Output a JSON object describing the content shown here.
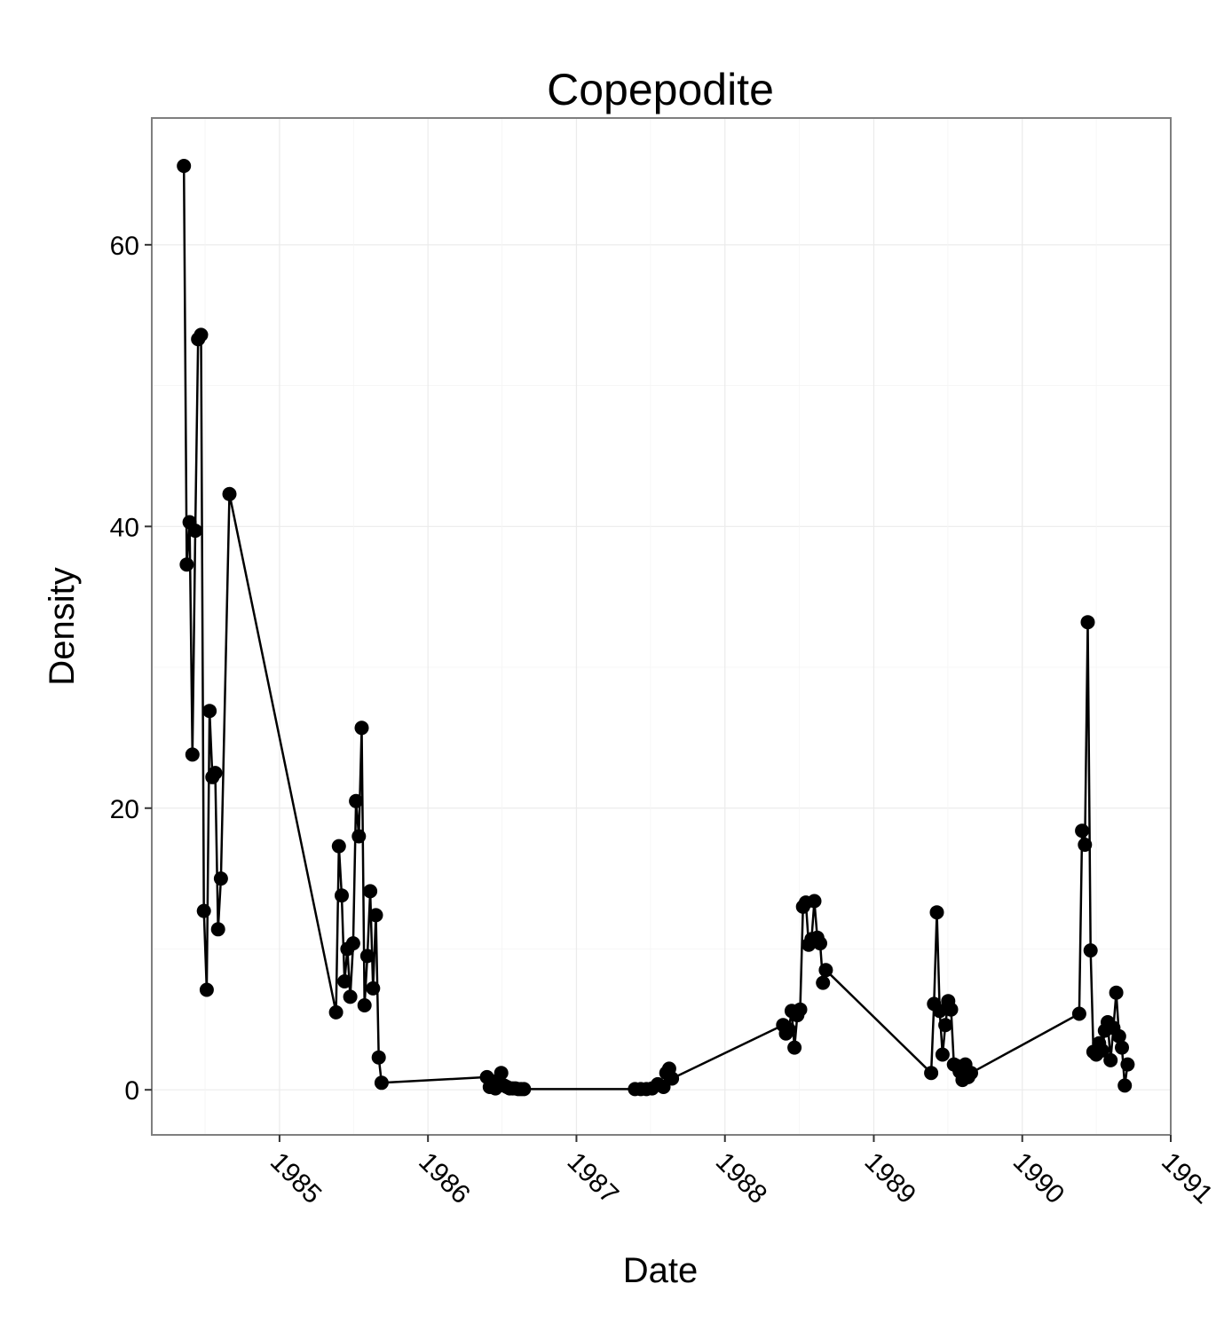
{
  "chart_data": {
    "type": "line",
    "title": "Copepodite",
    "xlabel": "Date",
    "ylabel": "Density",
    "x_ticks": [
      "1985",
      "1986",
      "1987",
      "1988",
      "1989",
      "1990",
      "1991"
    ],
    "y_ticks": [
      "0",
      "20",
      "40",
      "60"
    ],
    "xlim": [
      "1984-02-22",
      "1991-01-01"
    ],
    "ylim": [
      -3.2,
      69.0
    ],
    "grid": true,
    "legend": "none",
    "series": [
      {
        "color": "#000000",
        "points": [
          [
            "1984-05-11",
            65.6
          ],
          [
            "1984-05-18",
            37.3
          ],
          [
            "1984-05-25",
            40.3
          ],
          [
            "1984-06-01",
            23.8
          ],
          [
            "1984-06-08",
            39.7
          ],
          [
            "1984-06-15",
            53.3
          ],
          [
            "1984-06-22",
            53.6
          ],
          [
            "1984-06-29",
            12.7
          ],
          [
            "1984-07-06",
            7.1
          ],
          [
            "1984-07-13",
            26.9
          ],
          [
            "1984-07-20",
            22.2
          ],
          [
            "1984-07-27",
            22.5
          ],
          [
            "1984-08-03",
            11.4
          ],
          [
            "1984-08-10",
            15.0
          ],
          [
            "1984-08-31",
            42.3
          ],
          [
            "1985-05-20",
            5.5
          ],
          [
            "1985-05-27",
            17.3
          ],
          [
            "1985-06-03",
            13.8
          ],
          [
            "1985-06-10",
            7.7
          ],
          [
            "1985-06-17",
            10.0
          ],
          [
            "1985-06-24",
            6.6
          ],
          [
            "1985-07-01",
            10.4
          ],
          [
            "1985-07-08",
            20.5
          ],
          [
            "1985-07-15",
            18.0
          ],
          [
            "1985-07-22",
            25.7
          ],
          [
            "1985-07-29",
            6.0
          ],
          [
            "1985-08-05",
            9.5
          ],
          [
            "1985-08-12",
            14.1
          ],
          [
            "1985-08-19",
            7.2
          ],
          [
            "1985-08-26",
            12.4
          ],
          [
            "1985-09-02",
            2.3
          ],
          [
            "1985-09-09",
            0.5
          ],
          [
            "1986-05-26",
            0.9
          ],
          [
            "1986-06-02",
            0.2
          ],
          [
            "1986-06-09",
            0.6
          ],
          [
            "1986-06-16",
            0.1
          ],
          [
            "1986-06-23",
            0.5
          ],
          [
            "1986-06-30",
            1.2
          ],
          [
            "1986-07-07",
            0.3
          ],
          [
            "1986-07-14",
            0.2
          ],
          [
            "1986-07-21",
            0.1
          ],
          [
            "1986-07-28",
            0.1
          ],
          [
            "1986-08-04",
            0.1
          ],
          [
            "1986-08-11",
            0.05
          ],
          [
            "1986-08-18",
            0.05
          ],
          [
            "1986-08-25",
            0.05
          ],
          [
            "1987-05-25",
            0.05
          ],
          [
            "1987-06-08",
            0.05
          ],
          [
            "1987-06-22",
            0.05
          ],
          [
            "1987-07-06",
            0.1
          ],
          [
            "1987-07-20",
            0.4
          ],
          [
            "1987-08-03",
            0.2
          ],
          [
            "1987-08-10",
            1.2
          ],
          [
            "1987-08-17",
            1.5
          ],
          [
            "1987-08-24",
            0.8
          ],
          [
            "1988-05-23",
            4.6
          ],
          [
            "1988-05-30",
            4.0
          ],
          [
            "1988-06-06",
            4.3
          ],
          [
            "1988-06-13",
            5.6
          ],
          [
            "1988-06-20",
            3.0
          ],
          [
            "1988-06-27",
            5.3
          ],
          [
            "1988-07-04",
            5.7
          ],
          [
            "1988-07-11",
            13.0
          ],
          [
            "1988-07-18",
            13.3
          ],
          [
            "1988-07-25",
            10.3
          ],
          [
            "1988-08-01",
            10.7
          ],
          [
            "1988-08-08",
            13.4
          ],
          [
            "1988-08-15",
            10.8
          ],
          [
            "1988-08-22",
            10.4
          ],
          [
            "1988-08-29",
            7.6
          ],
          [
            "1988-09-05",
            8.5
          ],
          [
            "1989-05-22",
            1.2
          ],
          [
            "1989-05-29",
            6.1
          ],
          [
            "1989-06-05",
            12.6
          ],
          [
            "1989-06-12",
            5.6
          ],
          [
            "1989-06-19",
            2.5
          ],
          [
            "1989-06-26",
            4.6
          ],
          [
            "1989-07-03",
            6.3
          ],
          [
            "1989-07-10",
            5.7
          ],
          [
            "1989-07-17",
            1.8
          ],
          [
            "1989-07-24",
            1.7
          ],
          [
            "1989-07-31",
            1.3
          ],
          [
            "1989-08-07",
            0.7
          ],
          [
            "1989-08-14",
            1.8
          ],
          [
            "1989-08-21",
            0.9
          ],
          [
            "1989-08-28",
            1.2
          ],
          [
            "1990-05-21",
            5.4
          ],
          [
            "1990-05-28",
            18.4
          ],
          [
            "1990-06-04",
            17.4
          ],
          [
            "1990-06-11",
            33.2
          ],
          [
            "1990-06-18",
            9.9
          ],
          [
            "1990-06-25",
            2.7
          ],
          [
            "1990-07-02",
            2.5
          ],
          [
            "1990-07-09",
            3.3
          ],
          [
            "1990-07-16",
            2.8
          ],
          [
            "1990-07-23",
            4.2
          ],
          [
            "1990-07-30",
            4.8
          ],
          [
            "1990-08-06",
            2.1
          ],
          [
            "1990-08-13",
            4.4
          ],
          [
            "1990-08-20",
            6.9
          ],
          [
            "1990-08-27",
            3.8
          ],
          [
            "1990-09-03",
            3.0
          ],
          [
            "1990-09-10",
            0.3
          ],
          [
            "1990-09-17",
            1.8
          ]
        ]
      }
    ]
  }
}
